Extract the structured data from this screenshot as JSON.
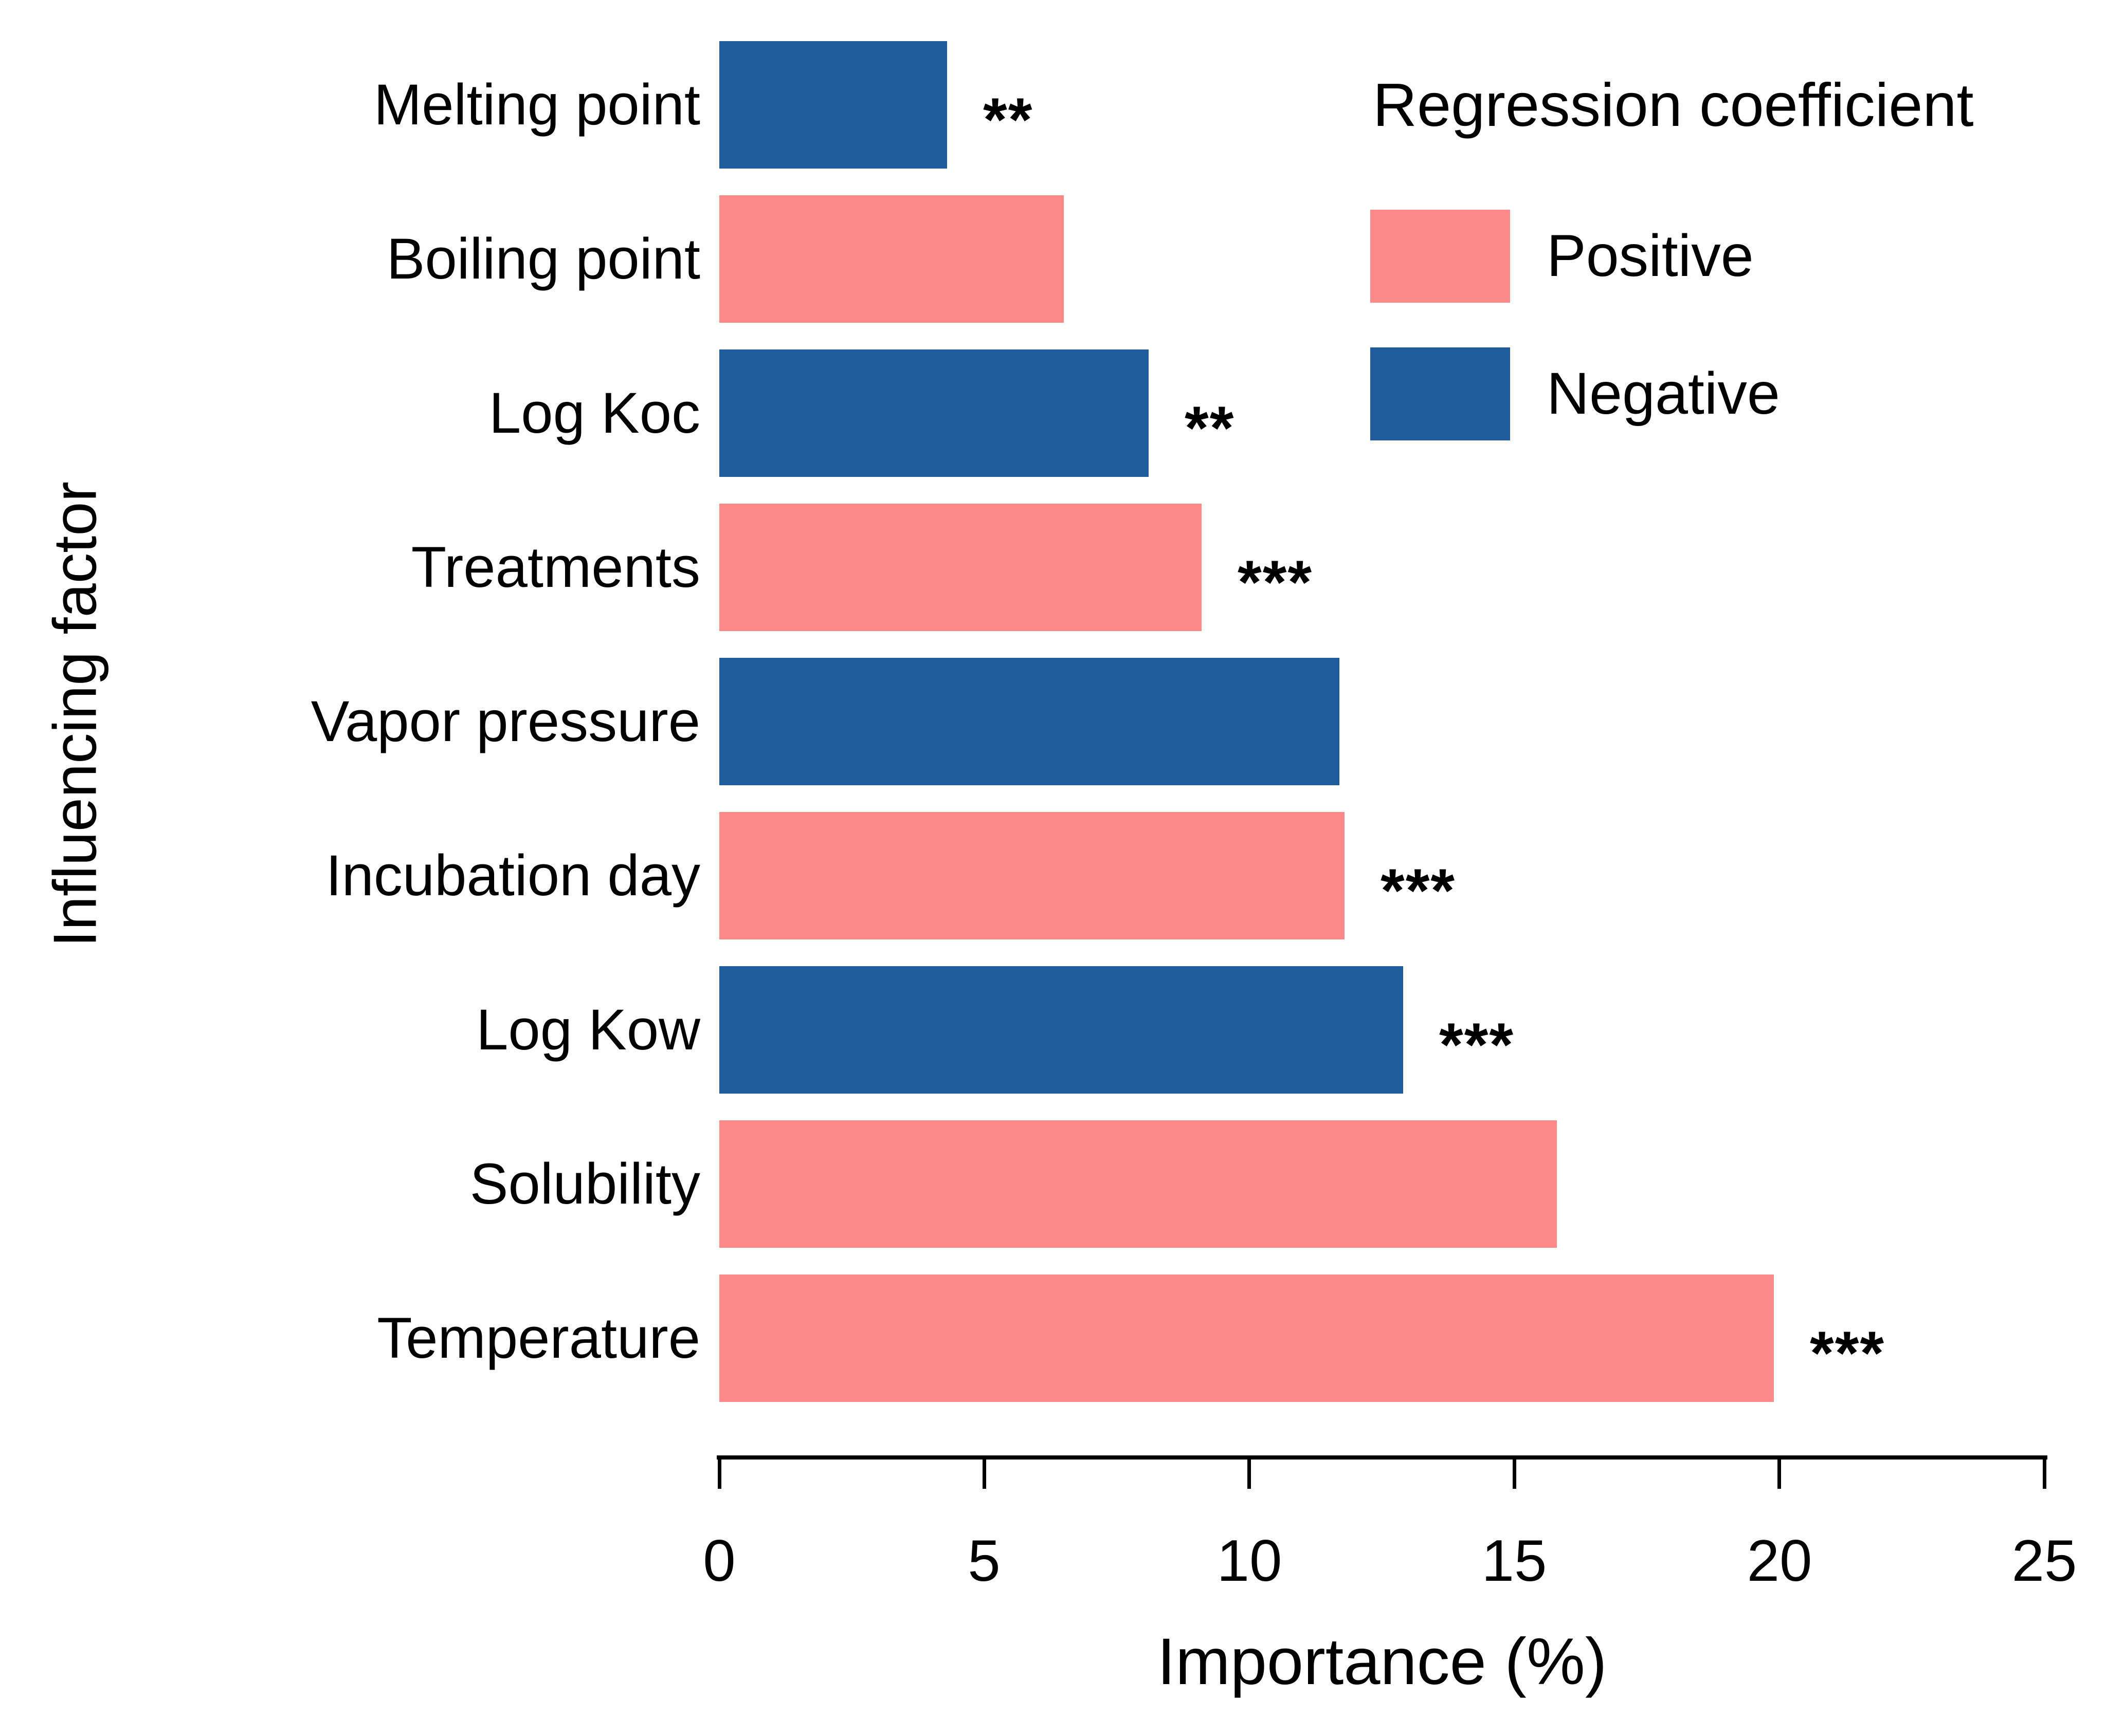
{
  "chart_data": {
    "type": "bar",
    "orientation": "horizontal",
    "xlabel": "Importance (%)",
    "ylabel": "Influencing factor",
    "xlim": [
      0,
      25
    ],
    "xticks": [
      0,
      5,
      10,
      15,
      20,
      25
    ],
    "grid": "off",
    "categories": [
      "Melting point",
      "Boiling point",
      "Log Koc",
      "Treatments",
      "Vapor pressure",
      "Incubation day",
      "Log Kow",
      "Solubility",
      "Temperature"
    ],
    "bars": [
      {
        "label": "Melting point",
        "value": 4.3,
        "coefficient": "Negative",
        "significance": "**"
      },
      {
        "label": "Boiling point",
        "value": 6.5,
        "coefficient": "Positive",
        "significance": ""
      },
      {
        "label": "Log Koc",
        "value": 8.1,
        "coefficient": "Negative",
        "significance": "**"
      },
      {
        "label": "Treatments",
        "value": 9.1,
        "coefficient": "Positive",
        "significance": "***"
      },
      {
        "label": "Vapor pressure",
        "value": 11.7,
        "coefficient": "Negative",
        "significance": ""
      },
      {
        "label": "Incubation day",
        "value": 11.8,
        "coefficient": "Positive",
        "significance": "***"
      },
      {
        "label": "Log Kow",
        "value": 12.9,
        "coefficient": "Negative",
        "significance": "***"
      },
      {
        "label": "Solubility",
        "value": 15.8,
        "coefficient": "Positive",
        "significance": ""
      },
      {
        "label": "Temperature",
        "value": 19.9,
        "coefficient": "Positive",
        "significance": "***"
      }
    ],
    "colors": {
      "Positive": "#FC8A88",
      "Negative": "#1E5C9E",
      "axis": "#000000",
      "text": "#000000"
    },
    "legend": {
      "title": "Regression coefficient",
      "position": "top-right",
      "items": [
        {
          "label": "Positive",
          "color": "#FC8A88"
        },
        {
          "label": "Negative",
          "color": "#1E5C9E"
        }
      ]
    }
  }
}
